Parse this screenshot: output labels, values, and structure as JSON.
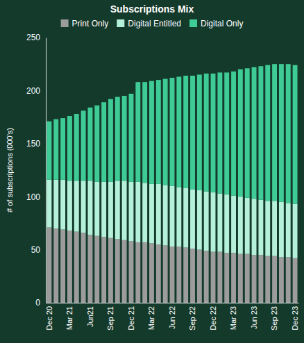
{
  "chart_data": {
    "type": "bar",
    "stacked": true,
    "title": "Subscriptions Mix",
    "y_label": "# of subscriptions (000's)",
    "categories": [
      "Dec 20",
      null,
      null,
      "Mar 21",
      null,
      null,
      "Jun21",
      null,
      null,
      "Sep 21",
      null,
      null,
      "Dec 21",
      null,
      null,
      "Mar 22",
      null,
      null,
      "Jun 22",
      null,
      null,
      "Sep 22",
      null,
      null,
      "Dec 22",
      null,
      null,
      "Mar 23",
      null,
      null,
      "Jun 23",
      null,
      null,
      "Sep 23",
      null,
      null,
      "Dec 23"
    ],
    "series": [
      {
        "name": "Print Only",
        "color": "#9c9c9c",
        "values": [
          71,
          70,
          69,
          68,
          67,
          66,
          64,
          63,
          62,
          61,
          60,
          59,
          58,
          57,
          57,
          56,
          55,
          54,
          53,
          53,
          52,
          51,
          50,
          49,
          48,
          48,
          47,
          47,
          46,
          46,
          45,
          45,
          44,
          44,
          43,
          43,
          42
        ]
      },
      {
        "name": "Digital Entitled",
        "color": "#b5f0da",
        "values": [
          45,
          46,
          47,
          47,
          48,
          49,
          51,
          51,
          52,
          53,
          55,
          56,
          56,
          57,
          56,
          56,
          57,
          57,
          57,
          56,
          56,
          56,
          56,
          56,
          56,
          55,
          55,
          54,
          54,
          53,
          53,
          52,
          52,
          52,
          52,
          51,
          51
        ]
      },
      {
        "name": "Digital Only",
        "color": "#3fcb96",
        "values": [
          55,
          57,
          58,
          61,
          63,
          66,
          69,
          72,
          75,
          78,
          79,
          80,
          83,
          94,
          95,
          97,
          98,
          100,
          102,
          104,
          106,
          107,
          109,
          111,
          112,
          114,
          115,
          117,
          120,
          122,
          124,
          126,
          128,
          129,
          130,
          131,
          131
        ]
      }
    ],
    "ylim": [
      0,
      250
    ],
    "yticks": [
      0,
      50,
      100,
      150,
      200,
      250
    ],
    "legend": "top"
  }
}
